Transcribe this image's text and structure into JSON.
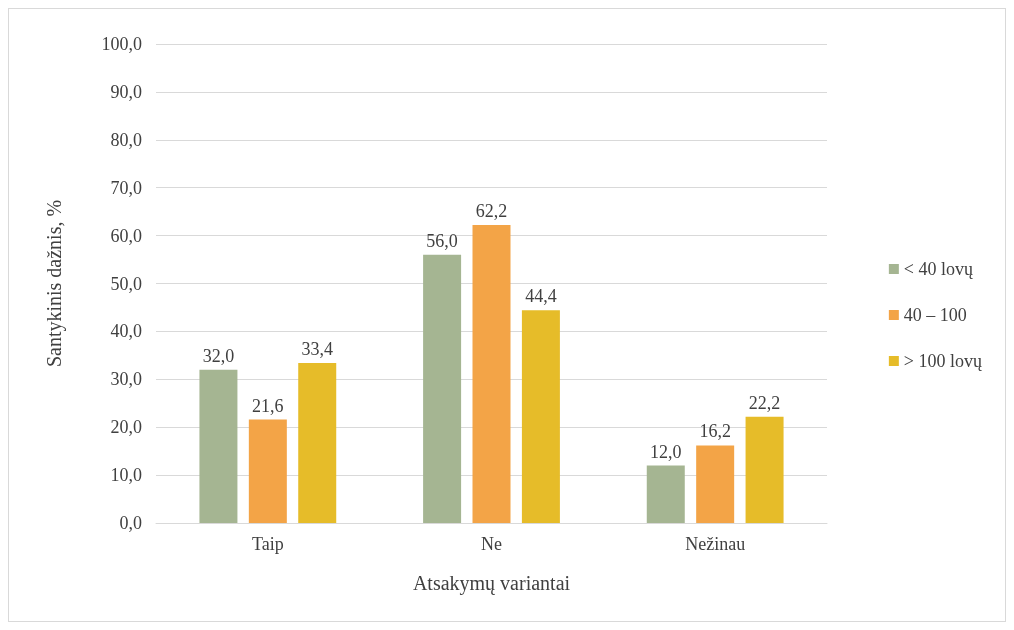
{
  "chart_data": {
    "type": "bar",
    "xlabel": "Atsakymų variantai",
    "ylabel": "Santykinis dažnis, %",
    "categories": [
      "Taip",
      "Ne",
      "Nežinau"
    ],
    "series": [
      {
        "name": "< 40 lovų",
        "color": "#a5b592",
        "values": [
          32.0,
          56.0,
          12.0
        ],
        "value_labels": [
          "32,0",
          "56,0",
          "12,0"
        ]
      },
      {
        "name": "40 – 100",
        "color": "#f3a447",
        "values": [
          21.6,
          62.2,
          16.2
        ],
        "value_labels": [
          "21,6",
          "62,2",
          "16,2"
        ]
      },
      {
        "name": "> 100 lovų",
        "color": "#e6bc29",
        "values": [
          33.4,
          44.4,
          22.2
        ],
        "value_labels": [
          "33,4",
          "44,4",
          "22,2"
        ]
      }
    ],
    "ylim": [
      0,
      100
    ],
    "yticks": [
      {
        "value": 0,
        "label": "0,0"
      },
      {
        "value": 10,
        "label": "10,0"
      },
      {
        "value": 20,
        "label": "20,0"
      },
      {
        "value": 30,
        "label": "30,0"
      },
      {
        "value": 40,
        "label": "40,0"
      },
      {
        "value": 50,
        "label": "50,0"
      },
      {
        "value": 60,
        "label": "60,0"
      },
      {
        "value": 70,
        "label": "70,0"
      },
      {
        "value": 80,
        "label": "80,0"
      },
      {
        "value": 90,
        "label": "90,0"
      },
      {
        "value": 100,
        "label": "100,0"
      }
    ],
    "grid": "y",
    "legend": "right"
  }
}
